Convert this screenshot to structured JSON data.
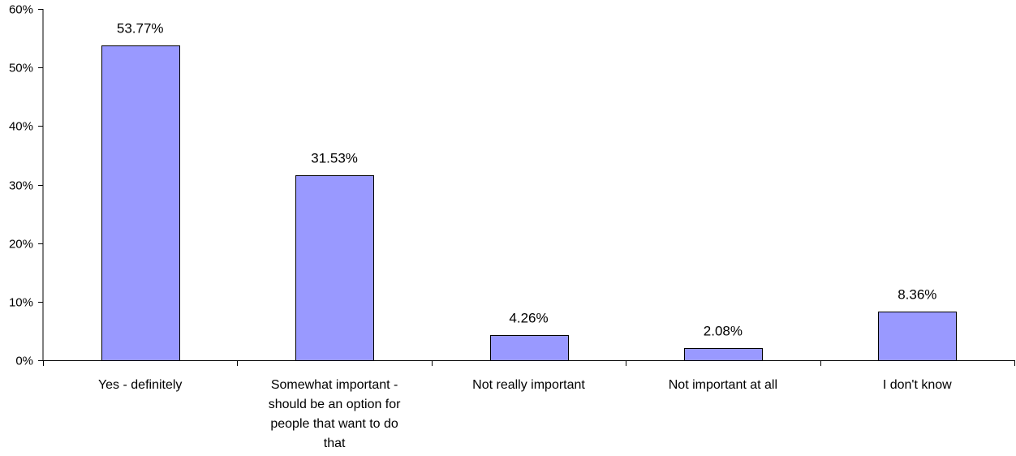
{
  "chart_data": {
    "type": "bar",
    "title": "",
    "xlabel": "",
    "ylabel": "",
    "categories": [
      [
        "Yes - definitely"
      ],
      [
        "Somewhat important -",
        "should be an option for",
        "people that want to do",
        "that"
      ],
      [
        "Not really important"
      ],
      [
        "Not important at all"
      ],
      [
        "I don't know"
      ]
    ],
    "values": [
      53.77,
      31.53,
      4.26,
      2.08,
      8.36
    ],
    "data_labels": [
      "53.77%",
      "31.53%",
      "4.26%",
      "2.08%",
      "8.36%"
    ],
    "ylim": [
      0,
      60
    ],
    "yticks": [
      0,
      10,
      20,
      30,
      40,
      50,
      60
    ],
    "ytick_labels": [
      "0%",
      "10%",
      "20%",
      "30%",
      "40%",
      "50%",
      "60%"
    ],
    "grid": false,
    "legend": "none",
    "colors": {
      "bar_fill": "#9999ff",
      "bar_stroke": "#000000",
      "axis": "#000000"
    }
  }
}
